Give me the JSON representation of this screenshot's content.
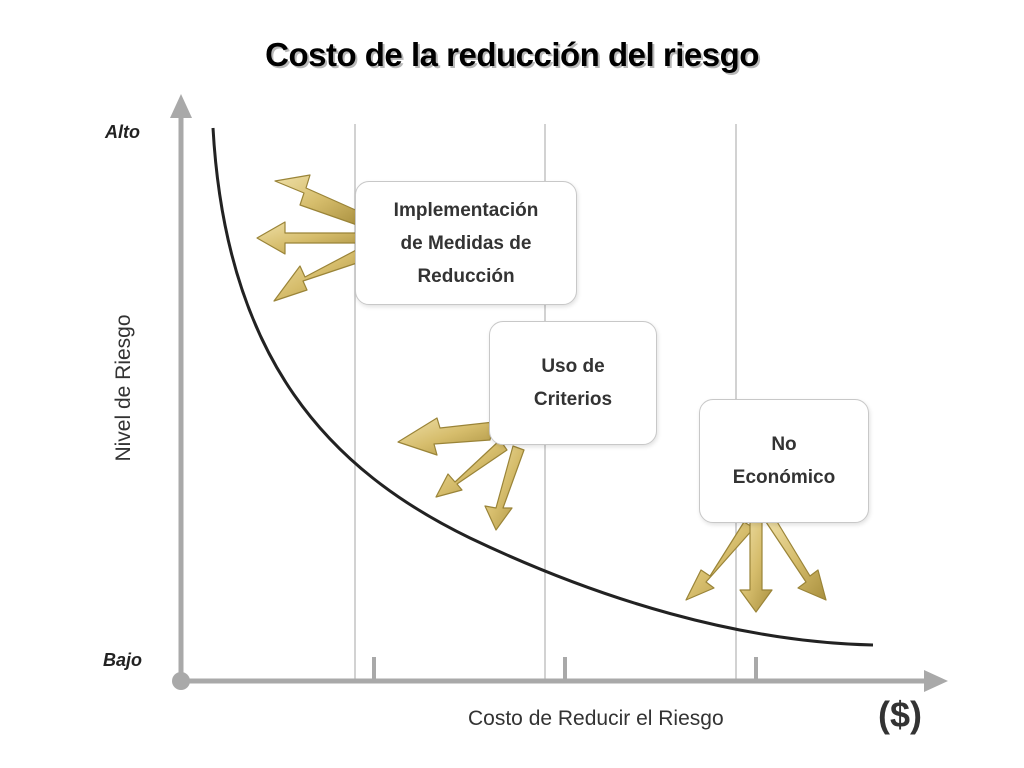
{
  "title": "Costo de la reducción del riesgo",
  "y_axis": {
    "title": "Nivel de Riesgo",
    "high_label": "Alto",
    "low_label": "Bajo"
  },
  "x_axis": {
    "title": "Costo de Reducir el Riesgo",
    "unit": "($)"
  },
  "stages": [
    {
      "label": "Implementación\nde Medidas de\nReducción"
    },
    {
      "label": "Uso de\nCriterios"
    },
    {
      "label": "No\nEconómico"
    }
  ],
  "colors": {
    "axis": "#a9a9a9",
    "curve": "#222222",
    "arrow_fill": "#d9c27a",
    "arrow_stroke": "#9a8438",
    "box_border": "#c8c8c8"
  }
}
